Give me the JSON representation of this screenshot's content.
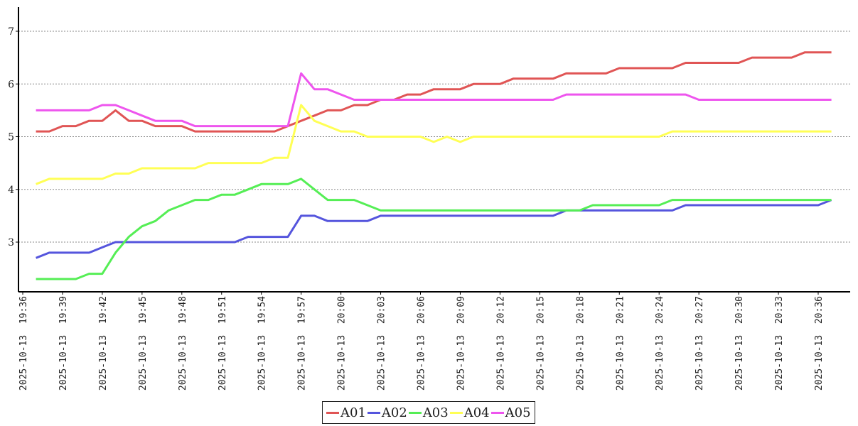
{
  "chart_data": {
    "type": "line",
    "title": "",
    "xlabel": "",
    "ylabel": "",
    "ylim": [
      2.1,
      7.45
    ],
    "grid": true,
    "legend_position": "bottom-center",
    "yticks": [
      3,
      4,
      5,
      6,
      7
    ],
    "x": [
      "2025-10-13 19:37",
      "2025-10-13 19:38",
      "2025-10-13 19:39",
      "2025-10-13 19:40",
      "2025-10-13 19:41",
      "2025-10-13 19:42",
      "2025-10-13 19:43",
      "2025-10-13 19:44",
      "2025-10-13 19:45",
      "2025-10-13 19:46",
      "2025-10-13 19:47",
      "2025-10-13 19:48",
      "2025-10-13 19:49",
      "2025-10-13 19:50",
      "2025-10-13 19:51",
      "2025-10-13 19:52",
      "2025-10-13 19:53",
      "2025-10-13 19:54",
      "2025-10-13 19:55",
      "2025-10-13 19:56",
      "2025-10-13 19:57",
      "2025-10-13 19:58",
      "2025-10-13 19:59",
      "2025-10-13 20:00",
      "2025-10-13 20:01",
      "2025-10-13 20:02",
      "2025-10-13 20:03",
      "2025-10-13 20:04",
      "2025-10-13 20:05",
      "2025-10-13 20:06",
      "2025-10-13 20:07",
      "2025-10-13 20:08",
      "2025-10-13 20:09",
      "2025-10-13 20:10",
      "2025-10-13 20:11",
      "2025-10-13 20:12",
      "2025-10-13 20:13",
      "2025-10-13 20:14",
      "2025-10-13 20:15",
      "2025-10-13 20:16",
      "2025-10-13 20:17",
      "2025-10-13 20:18",
      "2025-10-13 20:19",
      "2025-10-13 20:20",
      "2025-10-13 20:21",
      "2025-10-13 20:22",
      "2025-10-13 20:23",
      "2025-10-13 20:24",
      "2025-10-13 20:25",
      "2025-10-13 20:26",
      "2025-10-13 20:27",
      "2025-10-13 20:28",
      "2025-10-13 20:29",
      "2025-10-13 20:30",
      "2025-10-13 20:31",
      "2025-10-13 20:32",
      "2025-10-13 20:33",
      "2025-10-13 20:34",
      "2025-10-13 20:35",
      "2025-10-13 20:36",
      "2025-10-13 20:37"
    ],
    "xticks": [
      "2025-10-13 19:36",
      "2025-10-13 19:39",
      "2025-10-13 19:42",
      "2025-10-13 19:45",
      "2025-10-13 19:48",
      "2025-10-13 19:51",
      "2025-10-13 19:54",
      "2025-10-13 19:57",
      "2025-10-13 20:00",
      "2025-10-13 20:03",
      "2025-10-13 20:06",
      "2025-10-13 20:09",
      "2025-10-13 20:12",
      "2025-10-13 20:15",
      "2025-10-13 20:18",
      "2025-10-13 20:21",
      "2025-10-13 20:24",
      "2025-10-13 20:27",
      "2025-10-13 20:30",
      "2025-10-13 20:33",
      "2025-10-13 20:36"
    ],
    "series": [
      {
        "name": "A01",
        "color": "#e05555",
        "values": [
          5.1,
          5.1,
          5.2,
          5.2,
          5.3,
          5.3,
          5.5,
          5.3,
          5.3,
          5.2,
          5.2,
          5.2,
          5.1,
          5.1,
          5.1,
          5.1,
          5.1,
          5.1,
          5.1,
          5.2,
          5.3,
          5.4,
          5.5,
          5.5,
          5.6,
          5.6,
          5.7,
          5.7,
          5.8,
          5.8,
          5.9,
          5.9,
          5.9,
          6.0,
          6.0,
          6.0,
          6.1,
          6.1,
          6.1,
          6.1,
          6.2,
          6.2,
          6.2,
          6.2,
          6.3,
          6.3,
          6.3,
          6.3,
          6.3,
          6.4,
          6.4,
          6.4,
          6.4,
          6.4,
          6.5,
          6.5,
          6.5,
          6.5,
          6.6,
          6.6,
          6.6
        ]
      },
      {
        "name": "A02",
        "color": "#5555dd",
        "values": [
          2.7,
          2.8,
          2.8,
          2.8,
          2.8,
          2.9,
          3.0,
          3.0,
          3.0,
          3.0,
          3.0,
          3.0,
          3.0,
          3.0,
          3.0,
          3.0,
          3.1,
          3.1,
          3.1,
          3.1,
          3.5,
          3.5,
          3.4,
          3.4,
          3.4,
          3.4,
          3.5,
          3.5,
          3.5,
          3.5,
          3.5,
          3.5,
          3.5,
          3.5,
          3.5,
          3.5,
          3.5,
          3.5,
          3.5,
          3.5,
          3.6,
          3.6,
          3.6,
          3.6,
          3.6,
          3.6,
          3.6,
          3.6,
          3.6,
          3.7,
          3.7,
          3.7,
          3.7,
          3.7,
          3.7,
          3.7,
          3.7,
          3.7,
          3.7,
          3.7,
          3.8
        ]
      },
      {
        "name": "A03",
        "color": "#55ee55",
        "values": [
          2.3,
          2.3,
          2.3,
          2.3,
          2.4,
          2.4,
          2.8,
          3.1,
          3.3,
          3.4,
          3.6,
          3.7,
          3.8,
          3.8,
          3.9,
          3.9,
          4.0,
          4.1,
          4.1,
          4.1,
          4.2,
          4.0,
          3.8,
          3.8,
          3.8,
          3.7,
          3.6,
          3.6,
          3.6,
          3.6,
          3.6,
          3.6,
          3.6,
          3.6,
          3.6,
          3.6,
          3.6,
          3.6,
          3.6,
          3.6,
          3.6,
          3.6,
          3.7,
          3.7,
          3.7,
          3.7,
          3.7,
          3.7,
          3.8,
          3.8,
          3.8,
          3.8,
          3.8,
          3.8,
          3.8,
          3.8,
          3.8,
          3.8,
          3.8,
          3.8,
          3.8
        ]
      },
      {
        "name": "A04",
        "color": "#ffff55",
        "values": [
          4.1,
          4.2,
          4.2,
          4.2,
          4.2,
          4.2,
          4.3,
          4.3,
          4.4,
          4.4,
          4.4,
          4.4,
          4.4,
          4.5,
          4.5,
          4.5,
          4.5,
          4.5,
          4.6,
          4.6,
          5.6,
          5.3,
          5.2,
          5.1,
          5.1,
          5.0,
          5.0,
          5.0,
          5.0,
          5.0,
          4.9,
          5.0,
          4.9,
          5.0,
          5.0,
          5.0,
          5.0,
          5.0,
          5.0,
          5.0,
          5.0,
          5.0,
          5.0,
          5.0,
          5.0,
          5.0,
          5.0,
          5.0,
          5.1,
          5.1,
          5.1,
          5.1,
          5.1,
          5.1,
          5.1,
          5.1,
          5.1,
          5.1,
          5.1,
          5.1,
          5.1
        ]
      },
      {
        "name": "A05",
        "color": "#ee55ee",
        "values": [
          5.5,
          5.5,
          5.5,
          5.5,
          5.5,
          5.6,
          5.6,
          5.5,
          5.4,
          5.3,
          5.3,
          5.3,
          5.2,
          5.2,
          5.2,
          5.2,
          5.2,
          5.2,
          5.2,
          5.2,
          6.2,
          5.9,
          5.9,
          5.8,
          5.7,
          5.7,
          5.7,
          5.7,
          5.7,
          5.7,
          5.7,
          5.7,
          5.7,
          5.7,
          5.7,
          5.7,
          5.7,
          5.7,
          5.7,
          5.7,
          5.8,
          5.8,
          5.8,
          5.8,
          5.8,
          5.8,
          5.8,
          5.8,
          5.8,
          5.8,
          5.7,
          5.7,
          5.7,
          5.7,
          5.7,
          5.7,
          5.7,
          5.7,
          5.7,
          5.7,
          5.7
        ]
      }
    ]
  }
}
